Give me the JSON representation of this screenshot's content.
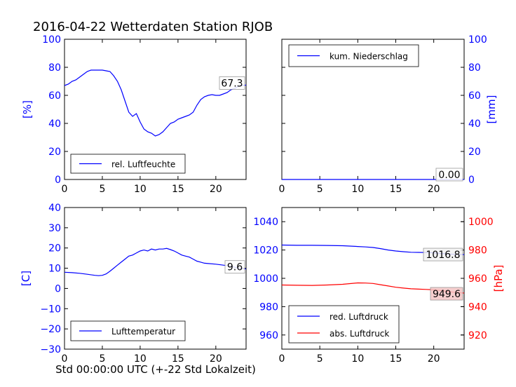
{
  "figure": {
    "title": "2016-04-22 Wetterdaten Station RJOB",
    "xlabel": "Std 00:00:00 UTC (+-22 Std Lokalzeit)"
  },
  "colors": {
    "blue": "#0000ff",
    "red": "#ff0000",
    "axis": "#000000"
  },
  "chart_data": [
    {
      "type": "line",
      "panel": "top-left",
      "ylabel": "[%]",
      "xlim": [
        0,
        24
      ],
      "ylim": [
        0,
        100
      ],
      "xticks": [
        0,
        5,
        10,
        15,
        20
      ],
      "yticks": [
        0,
        20,
        40,
        60,
        80,
        100
      ],
      "ytick_color": "#0000ff",
      "legend_position": "lower-left",
      "series": [
        {
          "name": "rel. Luftfeuchte",
          "color": "#0000ff",
          "x": [
            0,
            0.5,
            1,
            1.5,
            2,
            2.5,
            3,
            3.5,
            4,
            4.5,
            5,
            5.5,
            6,
            6.5,
            7,
            7.5,
            8,
            8.5,
            9,
            9.5,
            10,
            10.5,
            11,
            11.5,
            12,
            12.5,
            13,
            13.5,
            14,
            14.5,
            15,
            15.5,
            16,
            16.5,
            17,
            17.5,
            18,
            18.5,
            19,
            19.5,
            20,
            20.5,
            21,
            21.5,
            22,
            22.5,
            23,
            23.5,
            24
          ],
          "y": [
            67,
            68,
            70,
            71,
            73,
            75,
            77,
            78,
            78,
            78,
            78,
            77.5,
            77,
            74,
            70,
            64,
            56,
            48,
            45,
            47,
            41,
            36,
            34,
            33,
            31,
            32,
            34,
            37,
            40,
            41,
            43,
            44,
            45,
            46,
            48,
            53,
            57,
            59,
            60,
            60.5,
            60,
            60,
            61,
            62,
            64,
            65,
            66.5,
            67,
            67.3
          ]
        }
      ],
      "value_label": "67.3"
    },
    {
      "type": "line",
      "panel": "top-right",
      "ylabel": "[mm]",
      "xlim": [
        0,
        24
      ],
      "ylim": [
        0,
        100
      ],
      "xticks": [
        0,
        5,
        10,
        15,
        20
      ],
      "yticks": [
        0,
        20,
        40,
        60,
        80,
        100
      ],
      "ytick_color": "#0000ff",
      "legend_position": "upper-left",
      "series": [
        {
          "name": "kum. Niederschlag",
          "color": "#0000ff",
          "x": [
            0,
            24
          ],
          "y": [
            0,
            0
          ]
        }
      ],
      "value_label": "0.00"
    },
    {
      "type": "line",
      "panel": "bottom-left",
      "ylabel": "[C]",
      "xlim": [
        0,
        24
      ],
      "ylim": [
        -30,
        40
      ],
      "xticks": [
        0,
        5,
        10,
        15,
        20
      ],
      "yticks": [
        -30,
        -20,
        -10,
        0,
        10,
        20,
        30,
        40
      ],
      "ytick_color": "#0000ff",
      "legend_position": "lower-left",
      "series": [
        {
          "name": "Lufttemperatur",
          "color": "#0000ff",
          "x": [
            0,
            1,
            2,
            3,
            4,
            4.5,
            5,
            5.5,
            6,
            6.5,
            7,
            7.5,
            8,
            8.5,
            9,
            9.5,
            10,
            10.5,
            11,
            11.5,
            12,
            12.5,
            13,
            13.5,
            14,
            14.5,
            15,
            15.5,
            16,
            16.5,
            17,
            17.5,
            18,
            18.5,
            19,
            20,
            21,
            22,
            23,
            24
          ],
          "y": [
            8,
            7.8,
            7.5,
            7,
            6.5,
            6.3,
            6.5,
            7.2,
            8.5,
            10,
            11.5,
            13,
            14.5,
            16,
            16.5,
            17.5,
            18.5,
            19,
            18.5,
            19.5,
            19,
            19.5,
            19.5,
            19.8,
            19.2,
            18.5,
            17.5,
            16.5,
            16,
            15.5,
            14.5,
            13.5,
            13,
            12.5,
            12.3,
            12,
            11.5,
            11,
            10,
            9.6
          ]
        }
      ],
      "value_label": "9.6"
    },
    {
      "type": "line",
      "panel": "bottom-right",
      "ylabel": "[hPa]",
      "xlim": [
        0,
        24
      ],
      "ylim": [
        950,
        1050
      ],
      "ylim_right": [
        910,
        1010
      ],
      "xticks": [
        0,
        5,
        10,
        15,
        20
      ],
      "yticks": [
        960,
        980,
        1000,
        1020,
        1040
      ],
      "yticks_right": [
        920,
        940,
        960,
        980,
        1000
      ],
      "ytick_color": "#0000ff",
      "ytick_color_right": "#ff0000",
      "legend_position": "lower-left",
      "series": [
        {
          "name": "red. Luftdruck",
          "color": "#0000ff",
          "axis": "left",
          "x": [
            0,
            2,
            4,
            6,
            8,
            10,
            11,
            12,
            13,
            14,
            15,
            16,
            17,
            18,
            19,
            20,
            21,
            22,
            23,
            24
          ],
          "y": [
            1023.5,
            1023.3,
            1023.3,
            1023.2,
            1023,
            1022.5,
            1022.2,
            1021.8,
            1021,
            1020,
            1019.3,
            1018.8,
            1018.4,
            1018.3,
            1018.2,
            1018,
            1017.5,
            1017.2,
            1016.9,
            1016.8
          ]
        },
        {
          "name": "abs. Luftdruck",
          "color": "#ff0000",
          "axis": "right",
          "x": [
            0,
            2,
            4,
            6,
            8,
            9,
            10,
            11,
            12,
            13,
            14,
            15,
            16,
            17,
            18,
            19,
            20,
            21,
            22,
            23,
            24
          ],
          "y": [
            955.3,
            955.1,
            955,
            955.3,
            955.8,
            956.3,
            956.8,
            956.7,
            956.4,
            955.5,
            954.6,
            953.7,
            953.1,
            952.6,
            952.4,
            952.2,
            951.9,
            951.4,
            950.6,
            950,
            949.6
          ]
        }
      ],
      "value_labels": [
        "1016.8",
        "949.6"
      ]
    }
  ]
}
